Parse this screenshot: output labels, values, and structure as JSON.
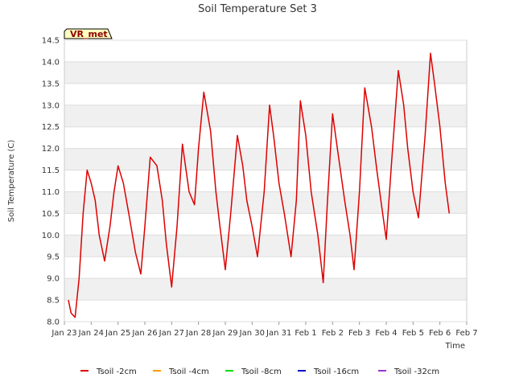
{
  "chart_data": {
    "type": "line",
    "title": "Soil Temperature Set 3",
    "xlabel": "Time",
    "ylabel": "Soil Temperature (C)",
    "badge": "VR_met",
    "xlim": [
      0,
      15
    ],
    "ylim": [
      8.0,
      14.5
    ],
    "x_ticks": [
      {
        "x": 0,
        "label": "Jan 23"
      },
      {
        "x": 1,
        "label": "Jan 24"
      },
      {
        "x": 2,
        "label": "Jan 25"
      },
      {
        "x": 3,
        "label": "Jan 26"
      },
      {
        "x": 4,
        "label": "Jan 27"
      },
      {
        "x": 5,
        "label": "Jan 28"
      },
      {
        "x": 6,
        "label": "Jan 29"
      },
      {
        "x": 7,
        "label": "Jan 30"
      },
      {
        "x": 8,
        "label": "Jan 31"
      },
      {
        "x": 9,
        "label": "Feb 1"
      },
      {
        "x": 10,
        "label": "Feb 2"
      },
      {
        "x": 11,
        "label": "Feb 3"
      },
      {
        "x": 12,
        "label": "Feb 4"
      },
      {
        "x": 13,
        "label": "Feb 5"
      },
      {
        "x": 14,
        "label": "Feb 6"
      },
      {
        "x": 15,
        "label": "Feb 7"
      }
    ],
    "y_ticks": [
      8.0,
      8.5,
      9.0,
      9.5,
      10.0,
      10.5,
      11.0,
      11.5,
      12.0,
      12.5,
      13.0,
      13.5,
      14.0,
      14.5
    ],
    "y_tick_labels": [
      "8.0",
      "8.5",
      "9.0",
      "9.5",
      "10.0",
      "10.5",
      "11.0",
      "11.5",
      "12.0",
      "12.5",
      "13.0",
      "13.5",
      "14.0",
      "14.5"
    ],
    "grid": "horizontal bands",
    "legend_position": "bottom",
    "series": [
      {
        "name": "Tsoil -2cm",
        "color": "#dd0000",
        "x": [
          0.15,
          0.25,
          0.4,
          0.55,
          0.7,
          0.85,
          1.0,
          1.15,
          1.3,
          1.5,
          1.7,
          1.85,
          2.0,
          2.2,
          2.4,
          2.65,
          2.85,
          3.0,
          3.2,
          3.45,
          3.65,
          3.8,
          4.0,
          4.2,
          4.4,
          4.65,
          4.85,
          5.0,
          5.2,
          5.45,
          5.65,
          5.8,
          6.0,
          6.2,
          6.45,
          6.65,
          6.8,
          7.0,
          7.2,
          7.45,
          7.65,
          7.8,
          8.0,
          8.2,
          8.45,
          8.65,
          8.8,
          9.0,
          9.2,
          9.45,
          9.65,
          9.8,
          10.0,
          10.2,
          10.45,
          10.65,
          10.8,
          11.0,
          11.2,
          11.45,
          11.65,
          11.8,
          12.0,
          12.2,
          12.45,
          12.65,
          12.8,
          13.0,
          13.2,
          13.45,
          13.65,
          13.8,
          14.0,
          14.2,
          14.35
        ],
        "y": [
          8.5,
          8.2,
          8.1,
          9.0,
          10.5,
          11.5,
          11.2,
          10.8,
          10.0,
          9.4,
          10.2,
          11.0,
          11.6,
          11.2,
          10.5,
          9.6,
          9.1,
          10.2,
          11.8,
          11.6,
          10.8,
          9.8,
          8.8,
          10.2,
          12.1,
          11.0,
          10.7,
          12.0,
          13.3,
          12.4,
          11.0,
          10.2,
          9.2,
          10.5,
          12.3,
          11.6,
          10.8,
          10.2,
          9.5,
          11.0,
          13.0,
          12.3,
          11.2,
          10.5,
          9.5,
          10.8,
          13.1,
          12.3,
          11.0,
          10.0,
          8.9,
          10.7,
          12.8,
          11.9,
          10.8,
          10.0,
          9.2,
          11.0,
          13.4,
          12.5,
          11.5,
          10.8,
          9.9,
          11.7,
          13.8,
          13.0,
          12.0,
          11.0,
          10.4,
          12.3,
          14.2,
          13.5,
          12.5,
          11.2,
          10.5
        ],
        "note": ""
      },
      {
        "name": "Tsoil -4cm",
        "color": "#ff9900",
        "x": [],
        "y": []
      },
      {
        "name": "Tsoil -8cm",
        "color": "#00dd00",
        "x": [],
        "y": []
      },
      {
        "name": "Tsoil -16cm",
        "color": "#0000cc",
        "x": [],
        "y": []
      },
      {
        "name": "Tsoil -32cm",
        "color": "#9933cc",
        "x": [],
        "y": []
      }
    ]
  }
}
